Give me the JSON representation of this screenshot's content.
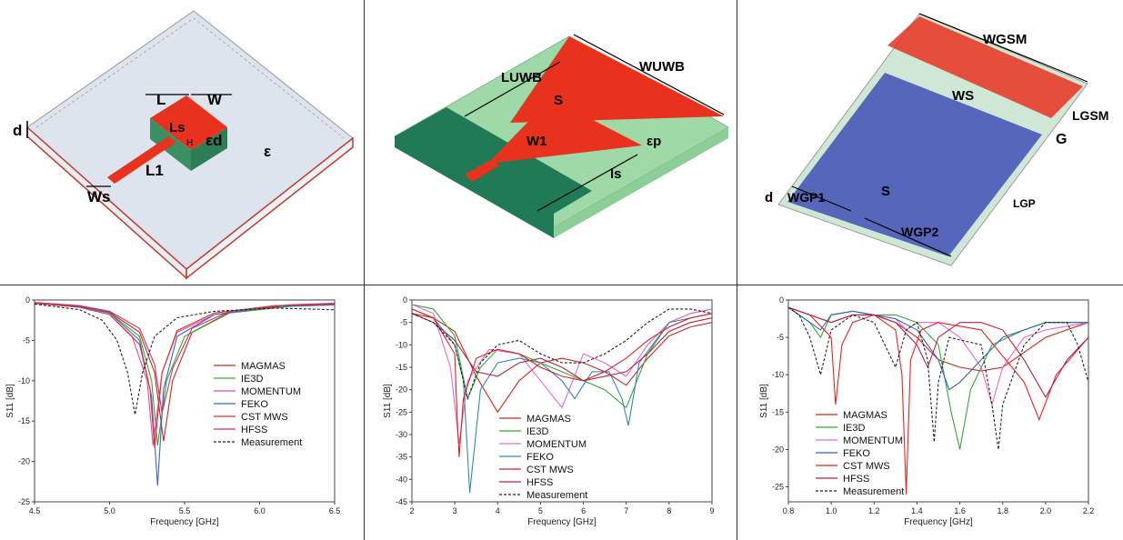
{
  "colors": {
    "substrate_red": "#e8321e",
    "substrate_green": "#9fd9a8",
    "dark_green": "#1f7a55",
    "ground_blue": "#5566bb",
    "light_gray": "#dde4ee"
  },
  "diagrams": {
    "left": {
      "label_L": "L",
      "label_W": "W",
      "label_d": "d",
      "label_Ls": "Ls",
      "label_H": "H",
      "label_ed": "εd",
      "label_e": "ε",
      "label_L1": "L1",
      "label_Ws": "Ws"
    },
    "middle": {
      "label_Luwb": "LUWB",
      "label_Wuwb": "WUWB",
      "label_S": "S",
      "label_W1": "W1",
      "label_ep": "εp",
      "label_ls": "ls"
    },
    "right": {
      "label_Wgsm": "WGSM",
      "label_Ws": "WS",
      "label_Lgsm": "LGSM",
      "label_G": "G",
      "label_d": "d",
      "label_Wgp1": "WGP1",
      "label_S": "S",
      "label_Lgp": "LGP",
      "label_Wgp2": "WGP2"
    }
  },
  "chart_data": [
    {
      "type": "line",
      "xlabel": "Frequency [GHz]",
      "ylabel": "S11 [dB]",
      "xlim": [
        4.5,
        6.5
      ],
      "ylim": [
        -25,
        0
      ],
      "xticks": [
        "4.5",
        "5.0",
        "5.5",
        "6.0",
        "6.5"
      ],
      "yticks": [
        "0",
        "-5",
        "-10",
        "-15",
        "-20",
        "-25"
      ],
      "legend_position": "bottom-right",
      "series": [
        {
          "name": "MAGMAS",
          "color": "#cc2a1a",
          "dashed": false,
          "x": [
            4.5,
            4.8,
            5.0,
            5.2,
            5.3,
            5.36,
            5.42,
            5.55,
            5.8,
            6.2,
            6.5
          ],
          "y": [
            -0.4,
            -0.8,
            -1.5,
            -4.0,
            -9.0,
            -17.5,
            -10.0,
            -4.0,
            -1.5,
            -0.7,
            -0.5
          ]
        },
        {
          "name": "IE3D",
          "color": "#33aa33",
          "dashed": false,
          "x": [
            4.5,
            4.8,
            5.0,
            5.2,
            5.28,
            5.32,
            5.38,
            5.5,
            5.8,
            6.2,
            6.5
          ],
          "y": [
            -0.4,
            -0.8,
            -1.6,
            -4.5,
            -10.0,
            -18.0,
            -10.0,
            -4.5,
            -1.6,
            -0.8,
            -0.6
          ]
        },
        {
          "name": "MOMENTUM",
          "color": "#ee44aa",
          "dashed": false,
          "x": [
            4.5,
            4.8,
            5.0,
            5.15,
            5.25,
            5.29,
            5.35,
            5.45,
            5.7,
            6.1,
            6.5
          ],
          "y": [
            -0.4,
            -0.9,
            -1.8,
            -4.5,
            -10.0,
            -18.0,
            -9.0,
            -4.0,
            -1.8,
            -0.8,
            -0.5
          ]
        },
        {
          "name": "FEKO",
          "color": "#3366cc",
          "dashed": false,
          "x": [
            4.5,
            4.8,
            5.0,
            5.2,
            5.28,
            5.32,
            5.36,
            5.45,
            5.7,
            6.1,
            6.5
          ],
          "y": [
            -0.4,
            -0.8,
            -1.6,
            -5.0,
            -12.0,
            -23.0,
            -11.0,
            -4.5,
            -1.8,
            -0.8,
            -0.6
          ]
        },
        {
          "name": "CST MWS",
          "color": "#dd3322",
          "dashed": false,
          "x": [
            4.5,
            4.8,
            5.0,
            5.2,
            5.27,
            5.3,
            5.35,
            5.45,
            5.7,
            6.1,
            6.5
          ],
          "y": [
            -0.4,
            -0.9,
            -1.8,
            -5.5,
            -11.0,
            -18.3,
            -9.0,
            -3.8,
            -1.6,
            -0.7,
            -0.5
          ]
        },
        {
          "name": "HFSS",
          "color": "#cc3366",
          "dashed": false,
          "x": [
            4.5,
            4.8,
            5.0,
            5.2,
            5.3,
            5.35,
            5.42,
            5.55,
            5.8,
            6.2,
            6.5
          ],
          "y": [
            -0.3,
            -0.7,
            -1.4,
            -3.5,
            -8.0,
            -14.0,
            -8.5,
            -3.5,
            -1.4,
            -0.6,
            -0.4
          ]
        },
        {
          "name": "Measurement",
          "color": "#222222",
          "dashed": true,
          "x": [
            4.5,
            4.8,
            4.95,
            5.05,
            5.12,
            5.17,
            5.22,
            5.3,
            5.45,
            5.7,
            6.1,
            6.5
          ],
          "y": [
            -0.5,
            -1.2,
            -2.5,
            -5.0,
            -9.0,
            -14.2,
            -9.0,
            -4.5,
            -2.2,
            -1.4,
            -1.0,
            -1.2
          ]
        }
      ]
    },
    {
      "type": "line",
      "xlabel": "Frequency [GHz]",
      "ylabel": "S11 [dB]",
      "xlim": [
        2,
        9
      ],
      "ylim": [
        -45,
        0
      ],
      "xticks": [
        "2",
        "3",
        "4",
        "5",
        "6",
        "7",
        "8",
        "9"
      ],
      "yticks": [
        "0",
        "-5",
        "-10",
        "-15",
        "-20",
        "-25",
        "-30",
        "-35",
        "-40",
        "-45"
      ],
      "legend_position": "bottom-center",
      "series": [
        {
          "name": "MAGMAS",
          "color": "#cc2a1a",
          "dashed": false,
          "x": [
            2,
            2.5,
            3,
            3.5,
            4,
            4.5,
            5,
            5.5,
            6,
            6.5,
            7,
            7.5,
            8,
            8.5,
            9
          ],
          "y": [
            -3,
            -4,
            -7,
            -17,
            -25,
            -18,
            -14,
            -13,
            -14,
            -16,
            -19,
            -13,
            -8,
            -6,
            -5
          ]
        },
        {
          "name": "IE3D",
          "color": "#33aa33",
          "dashed": false,
          "x": [
            2,
            2.5,
            3,
            3.3,
            3.6,
            4,
            4.5,
            5,
            5.5,
            6,
            6.5,
            7,
            7.5,
            8,
            8.5,
            9
          ],
          "y": [
            -1,
            -2,
            -8,
            -22,
            -15,
            -11,
            -12,
            -14,
            -16,
            -18,
            -20,
            -24,
            -12,
            -5,
            -3,
            -2
          ]
        },
        {
          "name": "MOMENTUM",
          "color": "#ee66cc",
          "dashed": false,
          "x": [
            2,
            2.5,
            2.9,
            3.1,
            3.3,
            3.8,
            4.5,
            5,
            5.5,
            6,
            6.5,
            7,
            7.5,
            8,
            8.5,
            9
          ],
          "y": [
            -1,
            -3,
            -15,
            -32,
            -18,
            -11,
            -12,
            -18,
            -24,
            -12,
            -14,
            -17,
            -10,
            -5,
            -3,
            -2
          ]
        },
        {
          "name": "FEKO",
          "color": "#3388bb",
          "dashed": false,
          "x": [
            2,
            2.5,
            3,
            3.2,
            3.35,
            3.6,
            4,
            4.5,
            5,
            5.5,
            5.8,
            6.2,
            6.6,
            6.9,
            7.05,
            7.3,
            8,
            9
          ],
          "y": [
            -2,
            -4,
            -10,
            -18,
            -43,
            -20,
            -14,
            -13,
            -14,
            -18,
            -22,
            -16,
            -16,
            -22,
            -28,
            -14,
            -5,
            -3
          ]
        },
        {
          "name": "CST MWS",
          "color": "#dd2222",
          "dashed": false,
          "x": [
            2,
            2.5,
            3,
            3.05,
            3.1,
            3.2,
            3.5,
            4,
            4.5,
            5,
            5.5,
            6,
            6.5,
            7,
            7.5,
            8,
            8.5,
            9
          ],
          "y": [
            -2,
            -4,
            -12,
            -25,
            -35,
            -22,
            -13,
            -11,
            -12,
            -15,
            -17,
            -18,
            -16,
            -13,
            -9,
            -6,
            -4,
            -3
          ]
        },
        {
          "name": "HFSS",
          "color": "#bb2244",
          "dashed": false,
          "x": [
            2,
            2.5,
            3,
            3.5,
            4,
            4.5,
            5,
            5.5,
            6,
            6.5,
            7,
            7.5,
            8,
            8.5,
            9
          ],
          "y": [
            -3,
            -5,
            -9,
            -16,
            -17,
            -14,
            -13,
            -15,
            -18,
            -17,
            -16,
            -12,
            -7,
            -5,
            -4
          ]
        },
        {
          "name": "Measurement",
          "color": "#222222",
          "dashed": true,
          "x": [
            2,
            2.5,
            3,
            3.3,
            3.6,
            4,
            4.5,
            5,
            5.5,
            6,
            6.5,
            7,
            7.5,
            8,
            8.5,
            9
          ],
          "y": [
            -3,
            -5,
            -10,
            -22,
            -14,
            -10,
            -9,
            -12,
            -14,
            -14,
            -12,
            -9,
            -5,
            -2,
            -2,
            -3
          ]
        }
      ]
    },
    {
      "type": "line",
      "xlabel": "Frequency [GHz]",
      "ylabel": "S11 [dB]",
      "xlim": [
        0.8,
        2.2
      ],
      "ylim": [
        -27,
        0
      ],
      "xticks": [
        "0.8",
        "1.0",
        "1.2",
        "1.4",
        "1.6",
        "1.8",
        "2.0",
        "2.2"
      ],
      "yticks": [
        "0",
        "-5",
        "-10",
        "-15",
        "-20",
        "-25"
      ],
      "legend_position": "bottom-center",
      "series": [
        {
          "name": "MAGMAS",
          "color": "#cc2a1a",
          "dashed": false,
          "x": [
            0.8,
            0.9,
            1.0,
            1.1,
            1.2,
            1.3,
            1.4,
            1.5,
            1.6,
            1.7,
            1.8,
            1.9,
            2.0,
            2.1,
            2.2
          ],
          "y": [
            -1,
            -2,
            -3,
            -2,
            -2,
            -3,
            -5,
            -8,
            -9,
            -9.5,
            -9,
            -7,
            -5,
            -4,
            -3
          ]
        },
        {
          "name": "IE3D",
          "color": "#33aa33",
          "dashed": false,
          "x": [
            0.8,
            0.9,
            0.95,
            1.0,
            1.1,
            1.2,
            1.3,
            1.4,
            1.5,
            1.56,
            1.6,
            1.65,
            1.75,
            1.9,
            2.0,
            2.2
          ],
          "y": [
            -1,
            -3,
            -5,
            -2,
            -1.5,
            -2,
            -2,
            -3,
            -6,
            -15,
            -20,
            -12,
            -6,
            -4,
            -3,
            -3
          ]
        },
        {
          "name": "MOMENTUM",
          "color": "#ee66cc",
          "dashed": false,
          "x": [
            0.8,
            0.9,
            1.0,
            1.1,
            1.2,
            1.3,
            1.35,
            1.4,
            1.5,
            1.6,
            1.7,
            1.75,
            1.8,
            1.9,
            2.0,
            2.2
          ],
          "y": [
            -1,
            -2,
            -3,
            -2,
            -2,
            -2.5,
            -4,
            -3,
            -3,
            -5,
            -9,
            -14,
            -9,
            -5,
            -4,
            -3
          ]
        },
        {
          "name": "FEKO",
          "color": "#3366bb",
          "dashed": false,
          "x": [
            0.8,
            0.9,
            0.95,
            1.0,
            1.1,
            1.2,
            1.3,
            1.4,
            1.5,
            1.55,
            1.6,
            1.7,
            1.8,
            1.9,
            2.0,
            2.2
          ],
          "y": [
            -1,
            -3,
            -4,
            -2,
            -1.5,
            -2,
            -2.5,
            -4,
            -8,
            -12,
            -11,
            -8,
            -5,
            -4,
            -3,
            -3
          ]
        },
        {
          "name": "CST MWS",
          "color": "#ee2222",
          "dashed": false,
          "x": [
            0.8,
            0.9,
            1.0,
            1.02,
            1.05,
            1.1,
            1.2,
            1.3,
            1.33,
            1.35,
            1.37,
            1.42,
            1.5,
            1.7,
            1.9,
            1.97,
            2.05,
            2.2
          ],
          "y": [
            -1,
            -2,
            -5,
            -14,
            -6,
            -3,
            -2,
            -4,
            -10,
            -26,
            -8,
            -4,
            -3,
            -4,
            -11,
            -16,
            -10,
            -5
          ]
        },
        {
          "name": "HFSS",
          "color": "#bb2244",
          "dashed": false,
          "x": [
            0.8,
            0.9,
            1.0,
            1.1,
            1.2,
            1.3,
            1.4,
            1.45,
            1.5,
            1.6,
            1.7,
            1.8,
            1.9,
            2.0,
            2.1,
            2.2
          ],
          "y": [
            -1,
            -2,
            -3,
            -2,
            -2,
            -3,
            -6,
            -9,
            -5,
            -3,
            -3,
            -4,
            -8,
            -13,
            -8,
            -5
          ]
        },
        {
          "name": "Measurement",
          "color": "#222222",
          "dashed": true,
          "x": [
            0.8,
            0.85,
            0.9,
            0.95,
            1.0,
            1.1,
            1.2,
            1.25,
            1.3,
            1.35,
            1.4,
            1.45,
            1.48,
            1.5,
            1.55,
            1.7,
            1.75,
            1.78,
            1.8,
            1.9,
            2.0,
            2.1,
            2.15,
            2.2
          ],
          "y": [
            -1,
            -2,
            -5,
            -10,
            -4,
            -2,
            -3,
            -6,
            -9,
            -4,
            -3,
            -8,
            -19,
            -11,
            -5,
            -6,
            -14,
            -20,
            -14,
            -6,
            -3,
            -3,
            -6,
            -11
          ]
        }
      ]
    }
  ]
}
